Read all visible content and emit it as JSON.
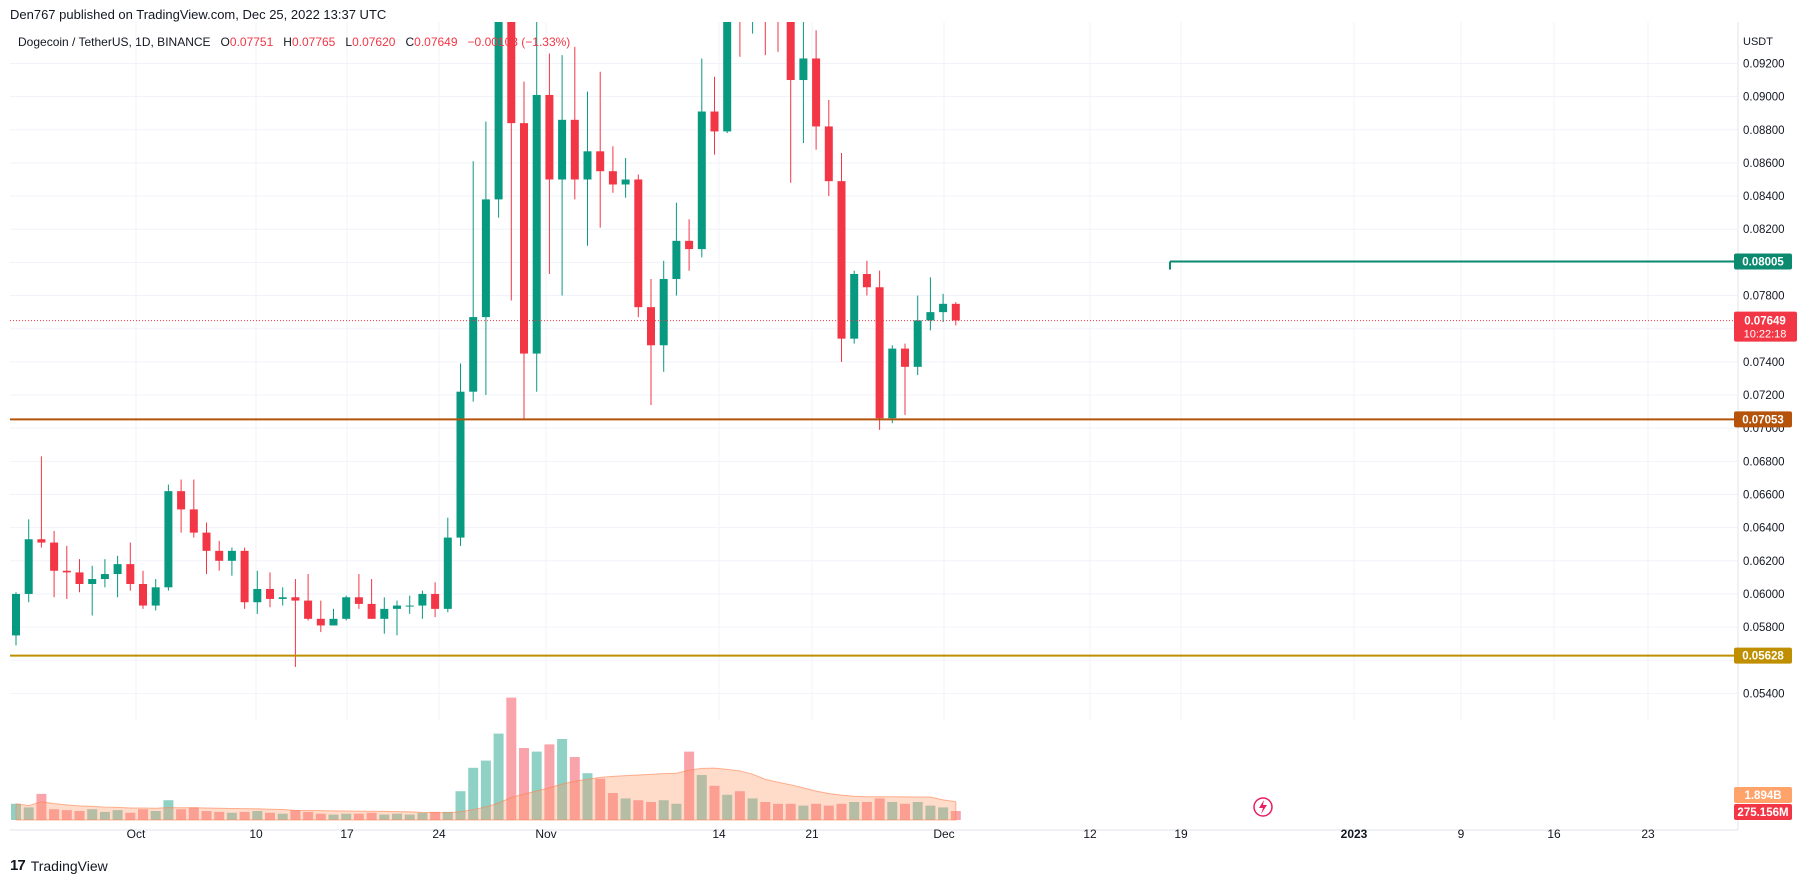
{
  "header": {
    "publisher_line": "Den767 published on TradingView.com, Dec 25, 2022 13:37 UTC"
  },
  "legend": {
    "symbol": "Dogecoin / TetherUS, 1D, BINANCE",
    "o_label": "O",
    "o_value": "0.07751",
    "h_label": "H",
    "h_value": "0.07765",
    "l_label": "L",
    "l_value": "0.07620",
    "c_label": "C",
    "c_value": "0.07649",
    "change": "−0.00103 (−1.33%)"
  },
  "axis": {
    "currency": "USDT",
    "price_ticks": [
      "0.09200",
      "0.09000",
      "0.08800",
      "0.08600",
      "0.08400",
      "0.08200",
      "0.07800",
      "0.07400",
      "0.07200",
      "0.07000",
      "0.06800",
      "0.06600",
      "0.06400",
      "0.06200",
      "0.06000",
      "0.05800",
      "0.05400"
    ],
    "date_ticks": [
      "Oct",
      "10",
      "17",
      "24",
      "Nov",
      "14",
      "21",
      "Dec",
      "12",
      "19",
      "2023",
      "9",
      "16",
      "23"
    ]
  },
  "badges": {
    "resistance": "0.08005",
    "last_price": "0.07649",
    "countdown": "10:22:18",
    "support_1": "0.07053",
    "support_2": "0.05628",
    "volume_ma": "1.894B",
    "volume_last": "275.156M"
  },
  "footer": {
    "brand": "TradingView",
    "brand_mark": "17"
  },
  "colors": {
    "up": "#089981",
    "down": "#f23645",
    "support": "#b45309",
    "support_2": "#bf8f00",
    "resistance": "#0b8a70"
  },
  "chart_data": {
    "type": "candlestick",
    "title": "Dogecoin / TetherUS, 1D, BINANCE",
    "ylabel": "USDT",
    "ylim": [
      0.053,
      0.0945
    ],
    "levels": [
      {
        "label": "0.08005",
        "value": 0.08005
      },
      {
        "label": "0.07053",
        "value": 0.07053
      },
      {
        "label": "0.05628",
        "value": 0.05628
      }
    ],
    "candles": [
      {
        "o": 0.0575,
        "h": 0.0601,
        "l": 0.0569,
        "c": 0.06
      },
      {
        "o": 0.06,
        "h": 0.0645,
        "l": 0.0595,
        "c": 0.0633
      },
      {
        "o": 0.0633,
        "h": 0.0683,
        "l": 0.0628,
        "c": 0.0631
      },
      {
        "o": 0.0631,
        "h": 0.0638,
        "l": 0.0598,
        "c": 0.0614
      },
      {
        "o": 0.0614,
        "h": 0.0629,
        "l": 0.0597,
        "c": 0.0613
      },
      {
        "o": 0.0613,
        "h": 0.0621,
        "l": 0.0601,
        "c": 0.0606
      },
      {
        "o": 0.0606,
        "h": 0.0617,
        "l": 0.0587,
        "c": 0.0609
      },
      {
        "o": 0.0609,
        "h": 0.0621,
        "l": 0.0604,
        "c": 0.0612
      },
      {
        "o": 0.0612,
        "h": 0.0623,
        "l": 0.0598,
        "c": 0.0618
      },
      {
        "o": 0.0618,
        "h": 0.0631,
        "l": 0.0602,
        "c": 0.0606
      },
      {
        "o": 0.0606,
        "h": 0.0614,
        "l": 0.0591,
        "c": 0.0593
      },
      {
        "o": 0.0593,
        "h": 0.0609,
        "l": 0.059,
        "c": 0.0604
      },
      {
        "o": 0.0604,
        "h": 0.0666,
        "l": 0.0602,
        "c": 0.0662
      },
      {
        "o": 0.0662,
        "h": 0.0669,
        "l": 0.0637,
        "c": 0.0651
      },
      {
        "o": 0.0651,
        "h": 0.0669,
        "l": 0.0634,
        "c": 0.0637
      },
      {
        "o": 0.0637,
        "h": 0.0643,
        "l": 0.0612,
        "c": 0.0626
      },
      {
        "o": 0.0626,
        "h": 0.0632,
        "l": 0.0614,
        "c": 0.062
      },
      {
        "o": 0.062,
        "h": 0.0628,
        "l": 0.0611,
        "c": 0.0626
      },
      {
        "o": 0.0626,
        "h": 0.0628,
        "l": 0.0591,
        "c": 0.0595
      },
      {
        "o": 0.0595,
        "h": 0.0614,
        "l": 0.0588,
        "c": 0.0603
      },
      {
        "o": 0.0603,
        "h": 0.0613,
        "l": 0.0592,
        "c": 0.0597
      },
      {
        "o": 0.0597,
        "h": 0.0604,
        "l": 0.0593,
        "c": 0.0598
      },
      {
        "o": 0.0598,
        "h": 0.0609,
        "l": 0.0556,
        "c": 0.0596
      },
      {
        "o": 0.0596,
        "h": 0.0612,
        "l": 0.0584,
        "c": 0.0585
      },
      {
        "o": 0.0585,
        "h": 0.0596,
        "l": 0.0577,
        "c": 0.0581
      },
      {
        "o": 0.0581,
        "h": 0.0591,
        "l": 0.0581,
        "c": 0.0585
      },
      {
        "o": 0.0585,
        "h": 0.0599,
        "l": 0.0584,
        "c": 0.0598
      },
      {
        "o": 0.0598,
        "h": 0.0612,
        "l": 0.0591,
        "c": 0.0594
      },
      {
        "o": 0.0594,
        "h": 0.0609,
        "l": 0.0585,
        "c": 0.0585
      },
      {
        "o": 0.0585,
        "h": 0.0598,
        "l": 0.0576,
        "c": 0.0591
      },
      {
        "o": 0.0591,
        "h": 0.0596,
        "l": 0.0575,
        "c": 0.0593
      },
      {
        "o": 0.0593,
        "h": 0.0599,
        "l": 0.0588,
        "c": 0.0593
      },
      {
        "o": 0.0593,
        "h": 0.0602,
        "l": 0.0585,
        "c": 0.06
      },
      {
        "o": 0.06,
        "h": 0.0607,
        "l": 0.0586,
        "c": 0.0591
      },
      {
        "o": 0.0591,
        "h": 0.0646,
        "l": 0.0589,
        "c": 0.0634
      },
      {
        "o": 0.0634,
        "h": 0.0739,
        "l": 0.0629,
        "c": 0.0722
      },
      {
        "o": 0.0722,
        "h": 0.0861,
        "l": 0.0716,
        "c": 0.0767
      },
      {
        "o": 0.0767,
        "h": 0.0885,
        "l": 0.072,
        "c": 0.0838
      },
      {
        "o": 0.0838,
        "h": 0.0985,
        "l": 0.0827,
        "c": 0.0982
      },
      {
        "o": 0.0955,
        "h": 0.0968,
        "l": 0.0777,
        "c": 0.0884
      },
      {
        "o": 0.0884,
        "h": 0.0909,
        "l": 0.0705,
        "c": 0.0745
      },
      {
        "o": 0.0745,
        "h": 0.0969,
        "l": 0.0722,
        "c": 0.0901
      },
      {
        "o": 0.0901,
        "h": 0.0926,
        "l": 0.0793,
        "c": 0.085
      },
      {
        "o": 0.085,
        "h": 0.0925,
        "l": 0.078,
        "c": 0.0886
      },
      {
        "o": 0.0886,
        "h": 0.093,
        "l": 0.0838,
        "c": 0.085
      },
      {
        "o": 0.085,
        "h": 0.0903,
        "l": 0.081,
        "c": 0.0867
      },
      {
        "o": 0.0867,
        "h": 0.0915,
        "l": 0.0821,
        "c": 0.0855
      },
      {
        "o": 0.0855,
        "h": 0.087,
        "l": 0.0842,
        "c": 0.0847
      },
      {
        "o": 0.0847,
        "h": 0.0863,
        "l": 0.0839,
        "c": 0.085
      },
      {
        "o": 0.085,
        "h": 0.0853,
        "l": 0.0767,
        "c": 0.0773
      },
      {
        "o": 0.0773,
        "h": 0.079,
        "l": 0.0714,
        "c": 0.075
      },
      {
        "o": 0.075,
        "h": 0.0801,
        "l": 0.0734,
        "c": 0.079
      },
      {
        "o": 0.079,
        "h": 0.0836,
        "l": 0.078,
        "c": 0.0813
      },
      {
        "o": 0.0813,
        "h": 0.0826,
        "l": 0.0795,
        "c": 0.0808
      },
      {
        "o": 0.0808,
        "h": 0.0923,
        "l": 0.0803,
        "c": 0.0891
      },
      {
        "o": 0.0891,
        "h": 0.0912,
        "l": 0.0865,
        "c": 0.0879
      },
      {
        "o": 0.0879,
        "h": 0.0984,
        "l": 0.0878,
        "c": 0.097
      },
      {
        "o": 0.097,
        "h": 0.0986,
        "l": 0.0924,
        "c": 0.0948
      },
      {
        "o": 0.0948,
        "h": 0.099,
        "l": 0.0938,
        "c": 0.0985
      },
      {
        "o": 0.099,
        "h": 0.0998,
        "l": 0.0925,
        "c": 0.0975
      },
      {
        "o": 0.0963,
        "h": 0.099,
        "l": 0.0927,
        "c": 0.0945
      },
      {
        "o": 0.0945,
        "h": 0.095,
        "l": 0.0848,
        "c": 0.091
      },
      {
        "o": 0.091,
        "h": 0.0948,
        "l": 0.0872,
        "c": 0.0923
      },
      {
        "o": 0.0923,
        "h": 0.094,
        "l": 0.0868,
        "c": 0.0882
      },
      {
        "o": 0.0882,
        "h": 0.0898,
        "l": 0.084,
        "c": 0.0849
      },
      {
        "o": 0.0849,
        "h": 0.0866,
        "l": 0.074,
        "c": 0.0754
      },
      {
        "o": 0.0754,
        "h": 0.0795,
        "l": 0.0751,
        "c": 0.0793
      },
      {
        "o": 0.0793,
        "h": 0.0801,
        "l": 0.078,
        "c": 0.0785
      },
      {
        "o": 0.0785,
        "h": 0.0795,
        "l": 0.0699,
        "c": 0.0706
      },
      {
        "o": 0.0706,
        "h": 0.075,
        "l": 0.0703,
        "c": 0.0748
      },
      {
        "o": 0.0748,
        "h": 0.0751,
        "l": 0.0708,
        "c": 0.0737
      },
      {
        "o": 0.0737,
        "h": 0.078,
        "l": 0.0732,
        "c": 0.0765
      },
      {
        "o": 0.0765,
        "h": 0.0791,
        "l": 0.0759,
        "c": 0.077
      },
      {
        "o": 0.077,
        "h": 0.0781,
        "l": 0.0764,
        "c": 0.0775
      },
      {
        "o": 0.0775,
        "h": 0.0776,
        "l": 0.0762,
        "c": 0.0765
      }
    ],
    "volume": [
      0.9,
      0.7,
      1.45,
      0.6,
      0.55,
      0.5,
      0.6,
      0.45,
      0.55,
      0.4,
      0.6,
      0.5,
      1.1,
      0.6,
      0.7,
      0.5,
      0.45,
      0.4,
      0.45,
      0.5,
      0.4,
      0.35,
      0.55,
      0.45,
      0.35,
      0.3,
      0.35,
      0.35,
      0.4,
      0.3,
      0.35,
      0.3,
      0.4,
      0.45,
      0.45,
      1.6,
      2.9,
      3.3,
      4.8,
      6.8,
      4.0,
      3.8,
      4.2,
      4.5,
      3.5,
      2.6,
      2.3,
      1.5,
      1.2,
      1.1,
      1.0,
      1.1,
      0.9,
      3.8,
      2.5,
      1.9,
      1.4,
      1.6,
      1.2,
      1.0,
      0.9,
      0.9,
      0.8,
      0.9,
      0.8,
      0.9,
      1.0,
      1.0,
      1.2,
      1.0,
      0.9,
      1.0,
      0.8,
      0.7,
      0.5
    ]
  }
}
